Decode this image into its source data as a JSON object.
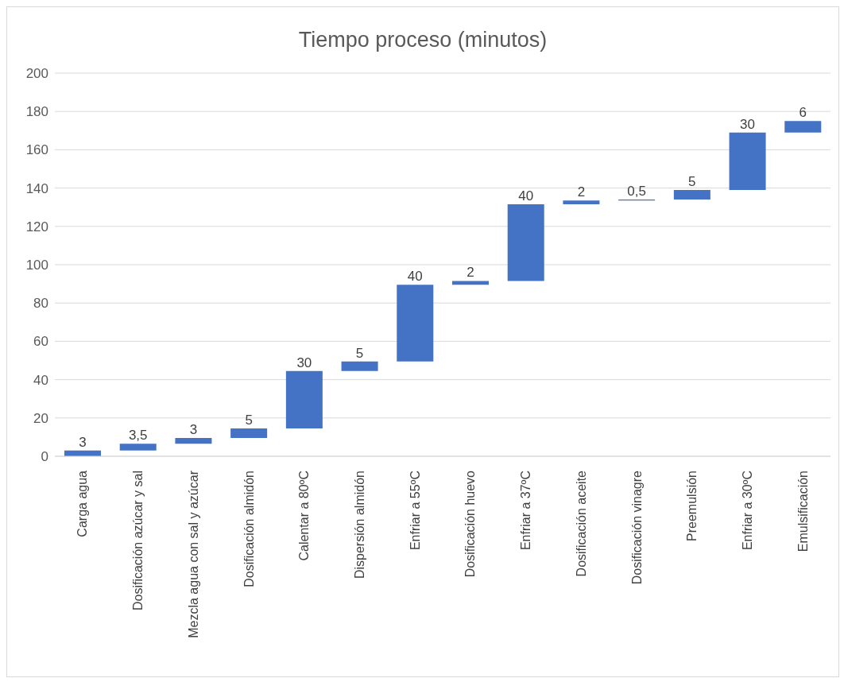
{
  "chart_data": {
    "type": "bar",
    "title": "Tiempo proceso (minutos)",
    "categories": [
      "Carga agua",
      "Dosificación azúcar y sal",
      "Mezcla agua con sal y azúcar",
      "Dosificación almidón",
      "Calentar a 80ºC",
      "Dispersión almidón",
      "Enfriar a 55ºC",
      "Dosificación huevo",
      "Enfriar a 37ºC",
      "Dosificación aceite",
      "Dosificación vinagre",
      "Preemulsión",
      "Enfriar a 30ºC",
      "Emulsificación"
    ],
    "values": [
      3,
      3.5,
      3,
      5,
      30,
      5,
      40,
      2,
      40,
      2,
      0.5,
      5,
      30,
      6
    ],
    "base": [
      0,
      3,
      6.5,
      9.5,
      14.5,
      44.5,
      49.5,
      89.5,
      91.5,
      131.5,
      133.5,
      134,
      139,
      169
    ],
    "value_labels": [
      "3",
      "3,5",
      "3",
      "5",
      "30",
      "5",
      "40",
      "2",
      "40",
      "2",
      "0,5",
      "5",
      "30",
      "6"
    ],
    "color": "#4472c4",
    "ylim": [
      0,
      200
    ],
    "yticks": [
      0,
      20,
      40,
      60,
      80,
      100,
      120,
      140,
      160,
      180,
      200
    ],
    "grid": "y"
  }
}
